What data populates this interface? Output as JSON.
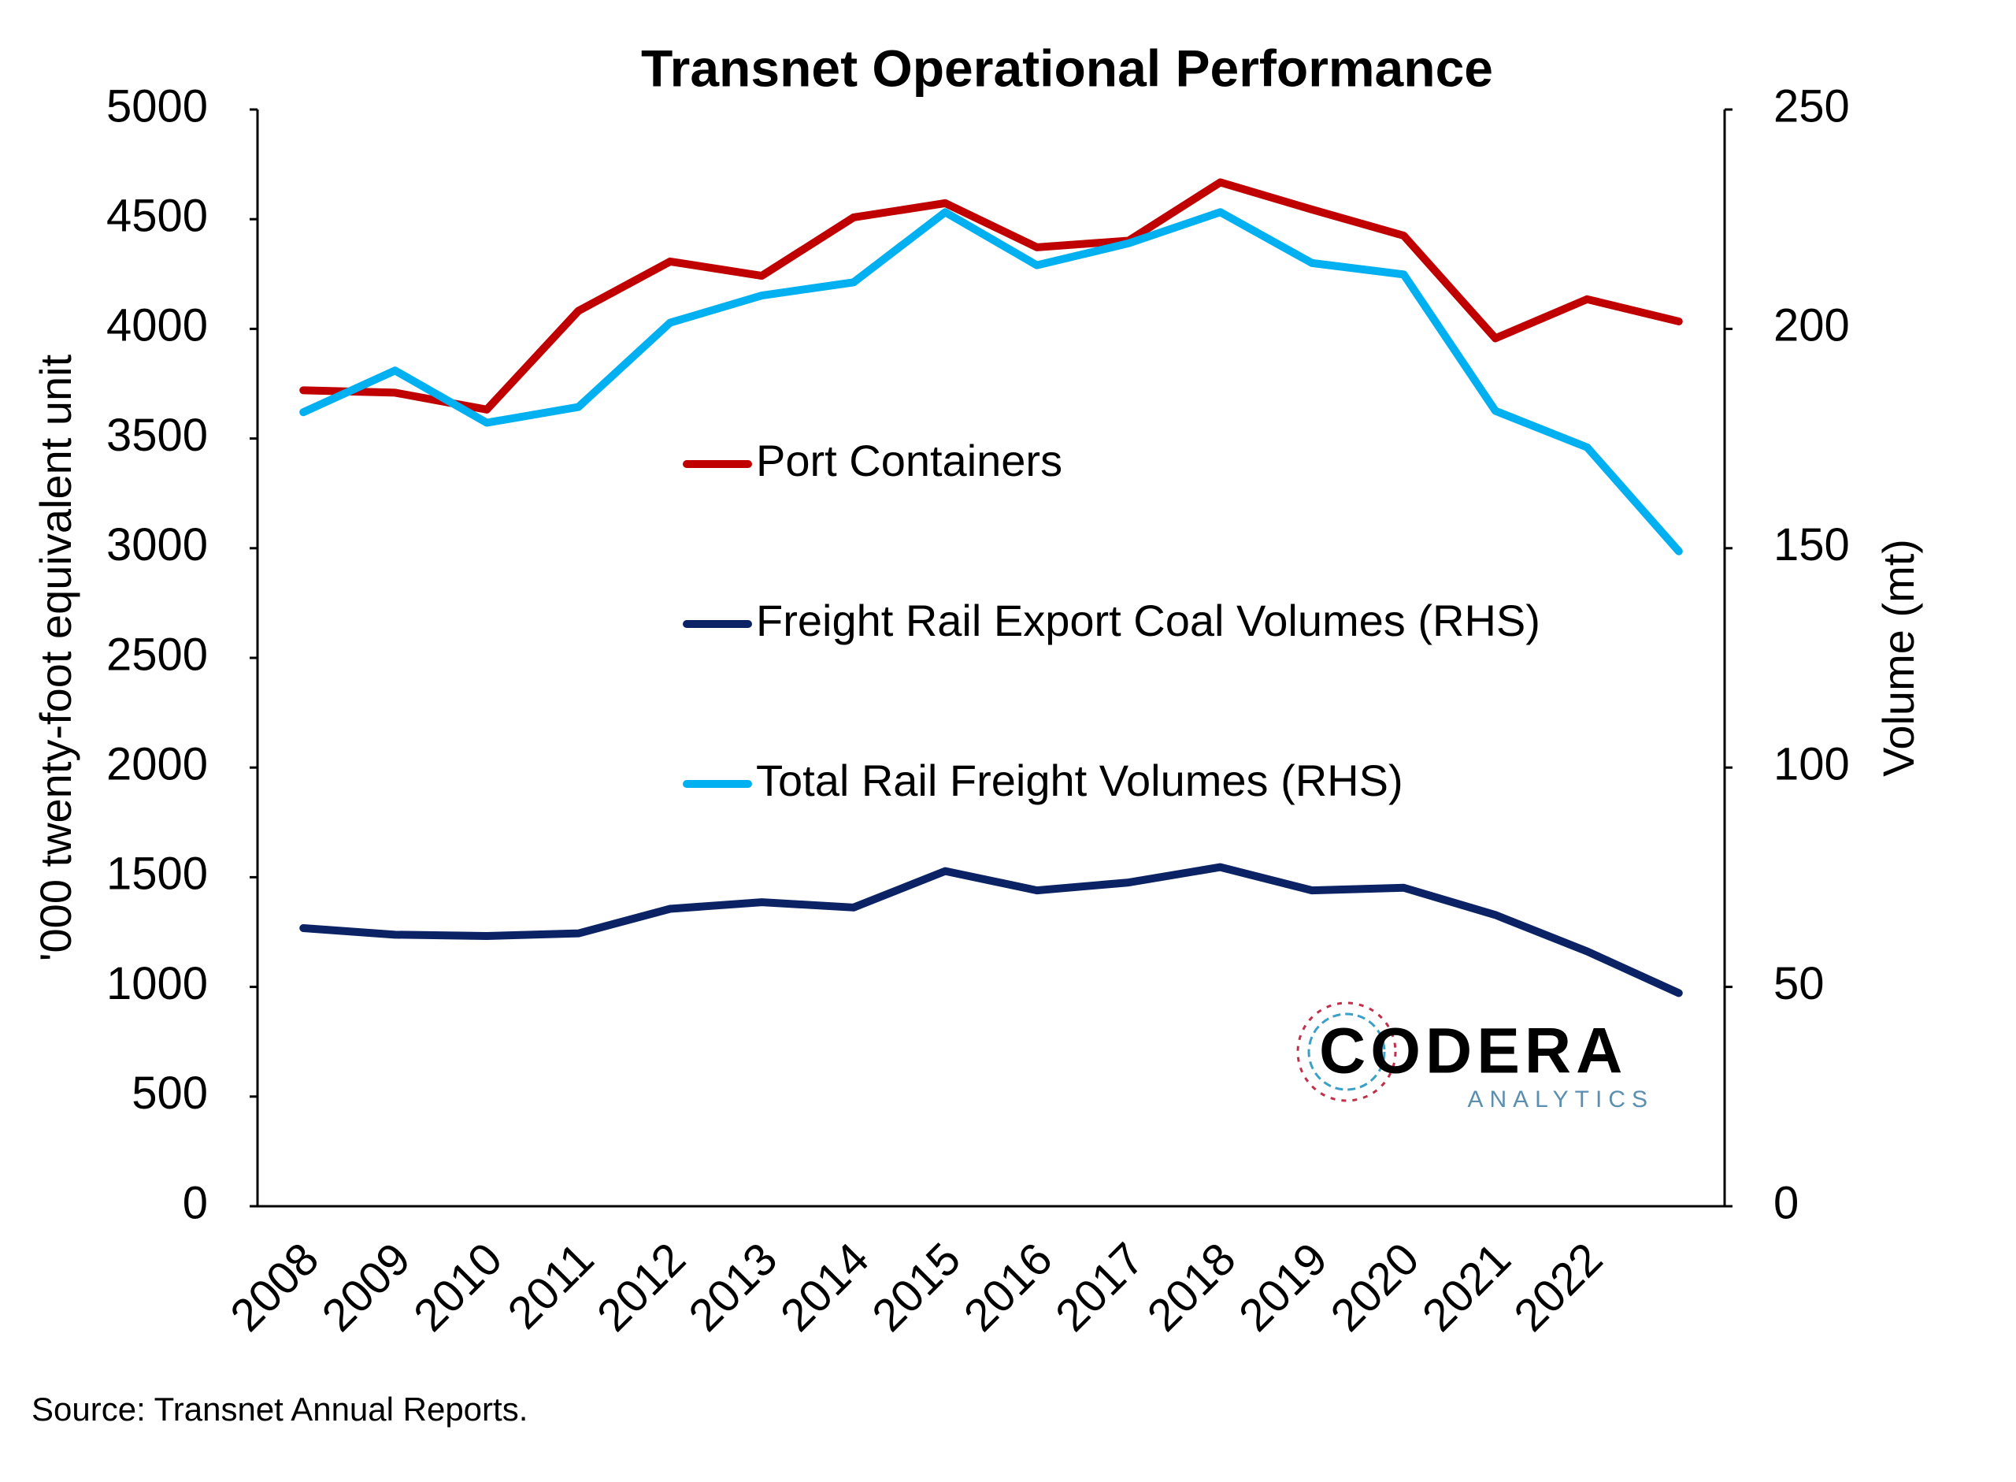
{
  "chart_data": {
    "type": "line",
    "title": "Transnet Operational Performance",
    "categories": [
      "2008",
      "2009",
      "2010",
      "2011",
      "2012",
      "2013",
      "2014",
      "2015",
      "2016",
      "2017",
      "2018",
      "2019",
      "2020",
      "2021",
      "2022",
      null
    ],
    "series": [
      {
        "name": "Port Containers",
        "color": "#c00000",
        "values": [
          3720,
          3709,
          3632,
          4082,
          4307,
          4242,
          4508,
          4573,
          4372,
          4402,
          4668,
          4544,
          4425,
          3957,
          4135,
          4034
        ]
      },
      {
        "name": "Freight Rail Export Coal Volumes (RHS)",
        "color": "#0b2265",
        "axis": "y2",
        "values": [
          63.4,
          61.9,
          61.6,
          62.2,
          67.8,
          69.3,
          68.1,
          76.4,
          72.0,
          73.8,
          77.3,
          72.0,
          72.6,
          66.4,
          58.1,
          48.6
        ]
      },
      {
        "name": "Total Rail Freight Volumes (RHS)",
        "color": "#00b0f0",
        "axis": "y2",
        "values": [
          181.0,
          190.5,
          178.6,
          182.2,
          201.4,
          207.6,
          210.6,
          226.6,
          214.5,
          219.5,
          226.6,
          215.0,
          212.4,
          181.3,
          173.0,
          149.3
        ]
      }
    ],
    "ylabel": "'000 twenty-foot equivalent unit",
    "y2label": "Volume (mt)",
    "ylim": [
      0,
      5000
    ],
    "yticks": [
      0,
      500,
      1000,
      1500,
      2000,
      2500,
      3000,
      3500,
      4000,
      4500,
      5000
    ],
    "y2lim": [
      0,
      250
    ],
    "y2ticks": [
      0,
      50,
      100,
      150,
      200,
      250
    ],
    "grid": false,
    "legend": "center",
    "logo": {
      "name": "CODERA",
      "tagline": "ANALYTICS"
    },
    "source": "Source: Transnet Annual Reports."
  }
}
